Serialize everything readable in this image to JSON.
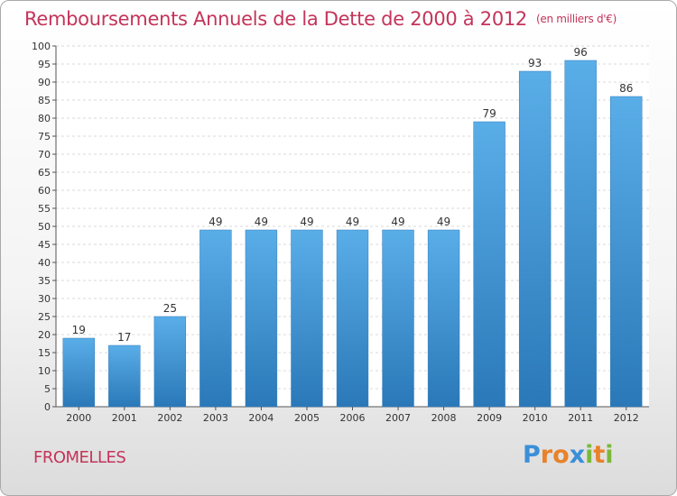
{
  "chart_data": {
    "type": "bar",
    "title": "Remboursements Annuels de la Dette de 2000 à 2012",
    "unit": "(en milliers d'€)",
    "categories": [
      "2000",
      "2001",
      "2002",
      "2003",
      "2004",
      "2005",
      "2006",
      "2007",
      "2008",
      "2009",
      "2010",
      "2011",
      "2012"
    ],
    "values": [
      19,
      17,
      25,
      49,
      49,
      49,
      49,
      49,
      49,
      79,
      93,
      96,
      86
    ],
    "ylim": [
      0,
      100
    ],
    "ytick_step": 5,
    "grid": true,
    "bar_color": "#4a9fe0"
  },
  "commune": "FROMELLES",
  "brand": {
    "letters": [
      "P",
      "r",
      "o",
      "x",
      "i",
      "t",
      "i"
    ],
    "colors": [
      "#3a8fd8",
      "#e8822a",
      "#e8822a",
      "#3a8fd8",
      "#7ab83a",
      "#e8822a",
      "#7ab83a"
    ]
  }
}
